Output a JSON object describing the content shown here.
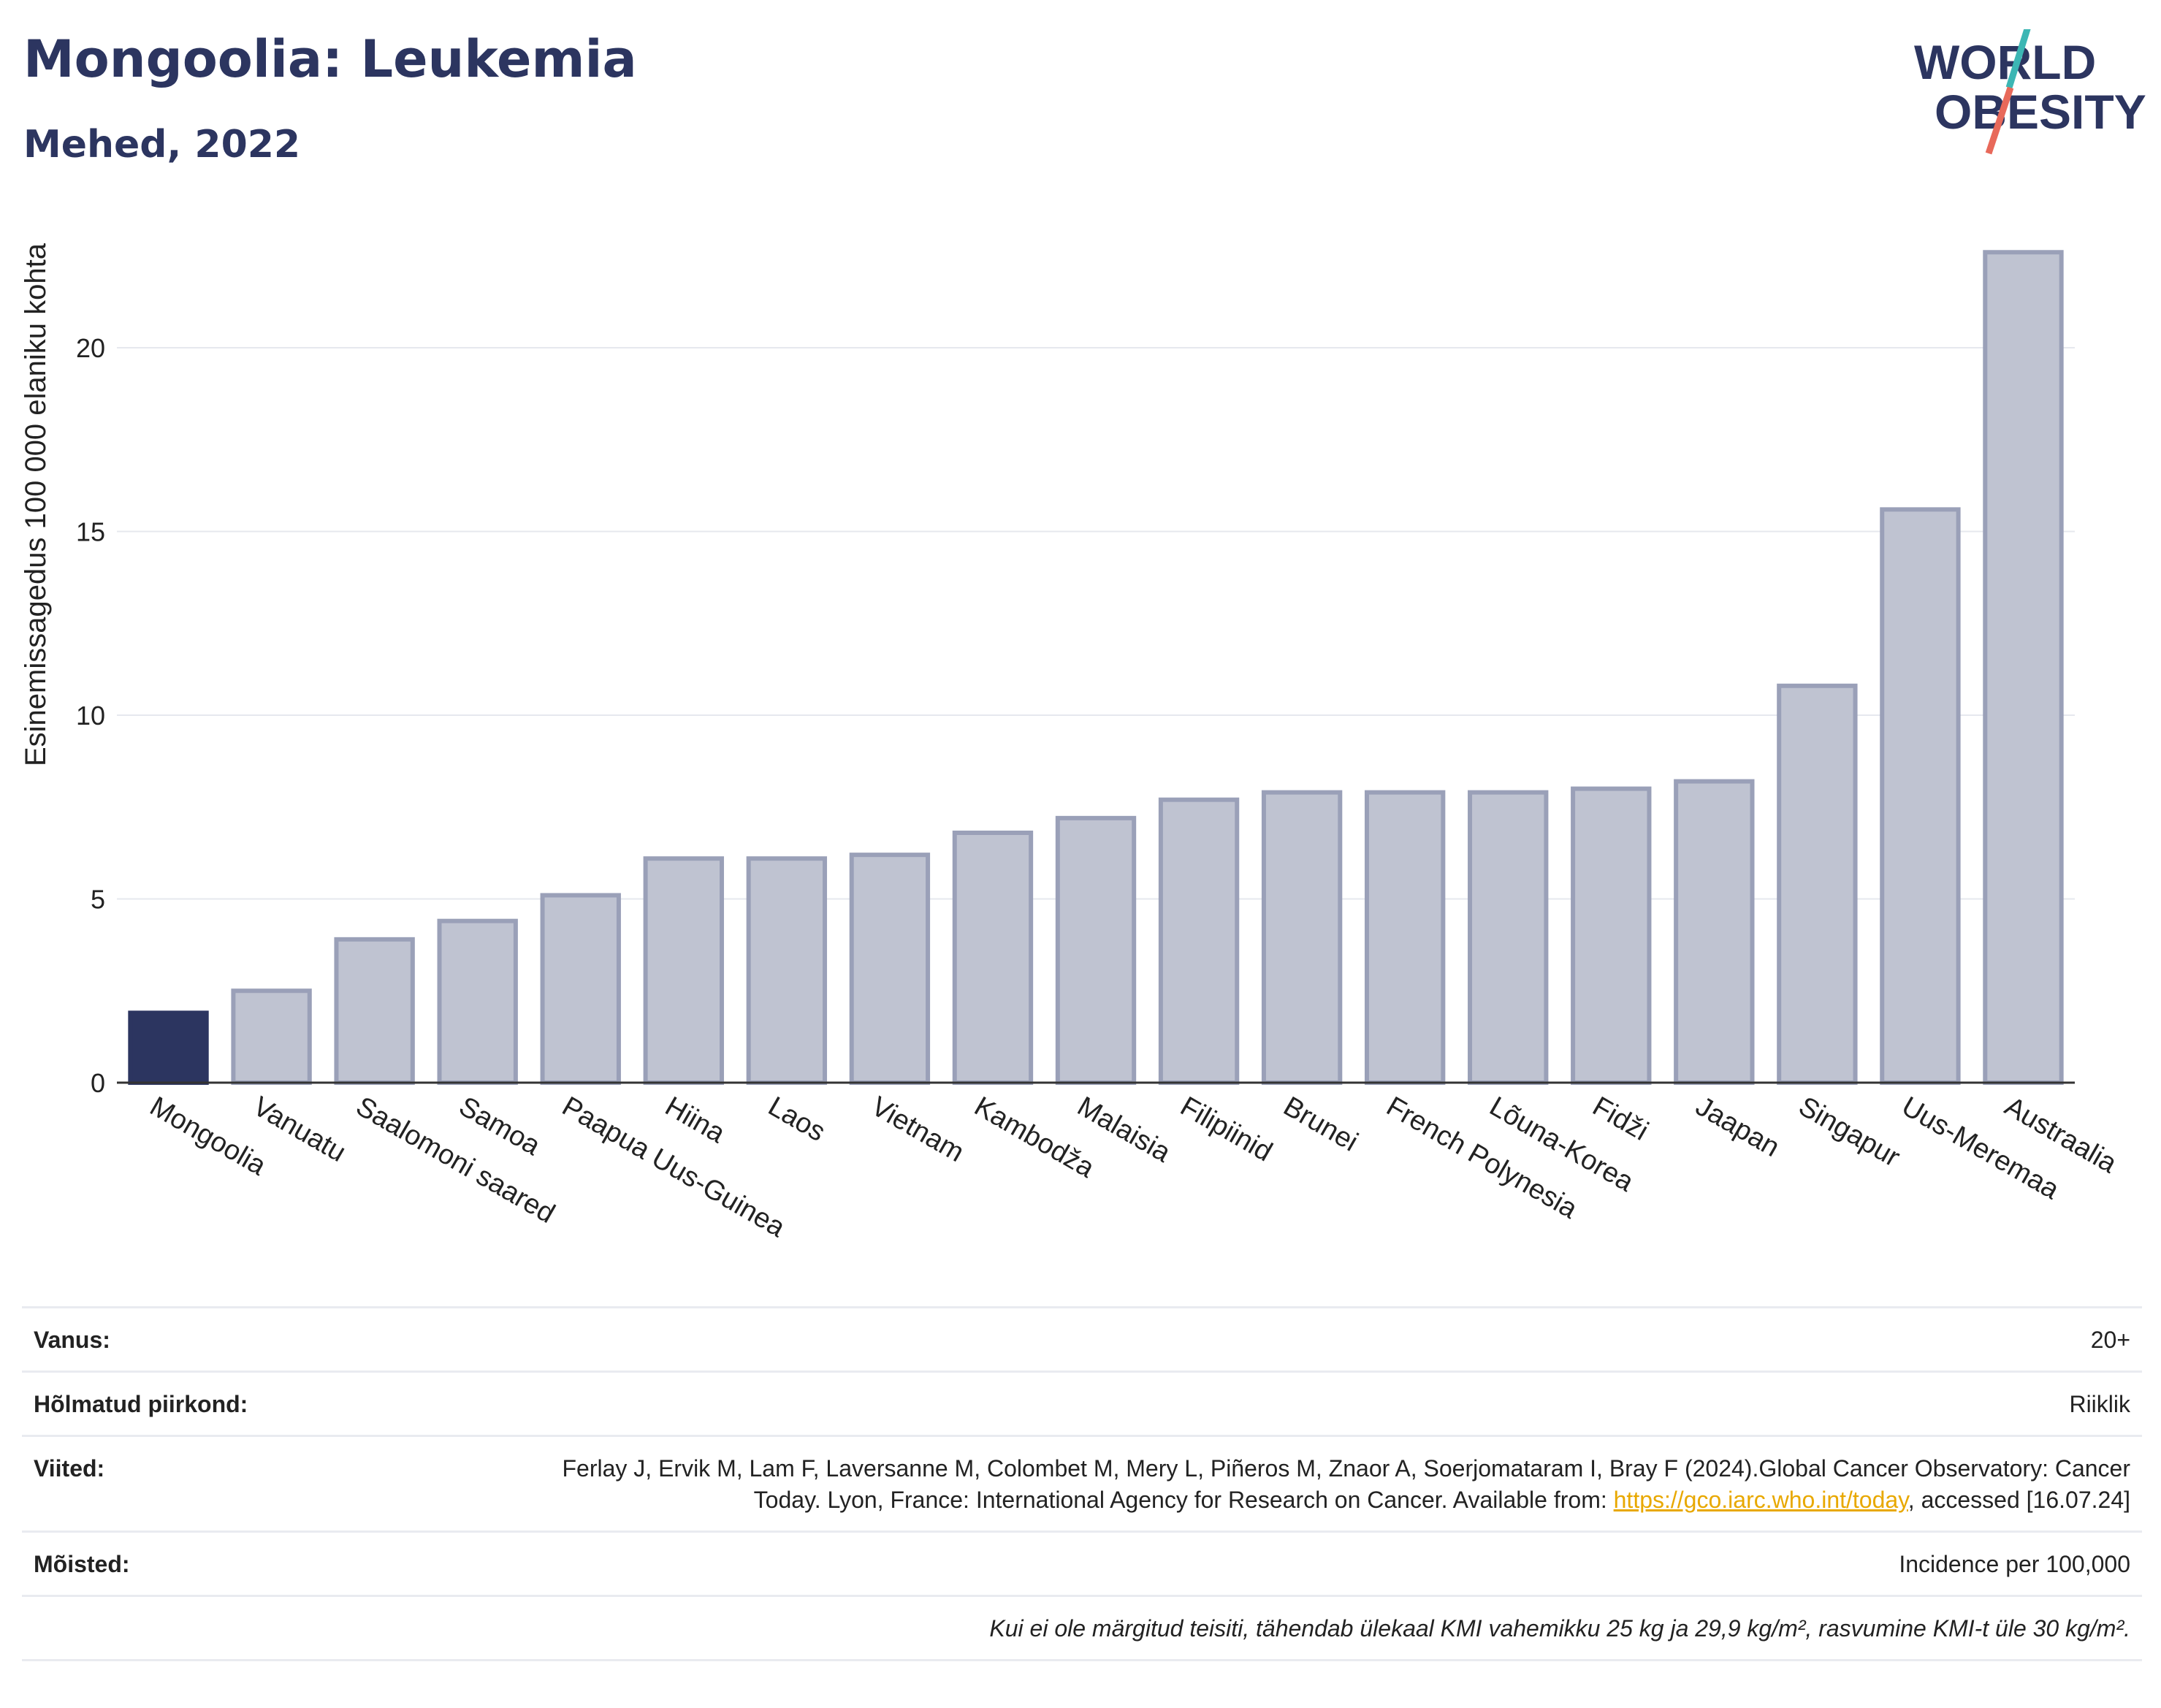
{
  "header": {
    "title": "Mongoolia: Leukemia",
    "subtitle": "Mehed, 2022",
    "logo_line1": "WORLD",
    "logo_line2": "OBESITY"
  },
  "colors": {
    "highlight": "#2c3560",
    "bar": "#bfc3d1",
    "bar_border": "#9aa0b8",
    "title": "#2c3560",
    "logo_teal": "#3cb6b4",
    "logo_coral": "#e8695a"
  },
  "chart_data": {
    "type": "bar",
    "ylabel": "Esinemissagedus 100 000 elaniku kohta",
    "xlabel": "",
    "ylim": [
      0,
      23.5
    ],
    "yticks": [
      0,
      5,
      10,
      15,
      20
    ],
    "grid": true,
    "highlight_category": "Mongoolia",
    "categories": [
      "Mongoolia",
      "Vanuatu",
      "Saalomoni saared",
      "Samoa",
      "Paapua Uus-Guinea",
      "Hiina",
      "Laos",
      "Vietnam",
      "Kambodža",
      "Malaisia",
      "Filipiinid",
      "Brunei",
      "French Polynesia",
      "Lõuna-Korea",
      "Fidži",
      "Jaapan",
      "Singapur",
      "Uus-Meremaa",
      "Austraalia"
    ],
    "values": [
      1.9,
      2.5,
      3.9,
      4.4,
      5.1,
      6.1,
      6.1,
      6.2,
      6.8,
      7.2,
      7.7,
      7.9,
      7.9,
      7.9,
      8.0,
      8.2,
      10.8,
      15.6,
      22.6
    ]
  },
  "info": {
    "age_label": "Vanus:",
    "age_value": "20+",
    "area_label": "Hõlmatud piirkond:",
    "area_value": "Riiklik",
    "refs_label": "Viited:",
    "refs_text1": "Ferlay J, Ervik M, Lam F, Laversanne M, Colombet M, Mery L, Piñeros M, Znaor A, Soerjomataram I, Bray F (2024).Global Cancer Observatory: Cancer Today. Lyon, France: International Agency for Research on Cancer. Available from: ",
    "refs_link": "https://gco.iarc.who.int/today",
    "refs_text2": ", accessed [16.07.24]",
    "defs_label": "Mõisted:",
    "defs_value": "Incidence per 100,000",
    "note": "Kui ei ole märgitud teisiti, tähendab ülekaal KMI vahemikku 25 kg ja 29,9 kg/m², rasvumine KMI-t üle 30 kg/m²."
  }
}
